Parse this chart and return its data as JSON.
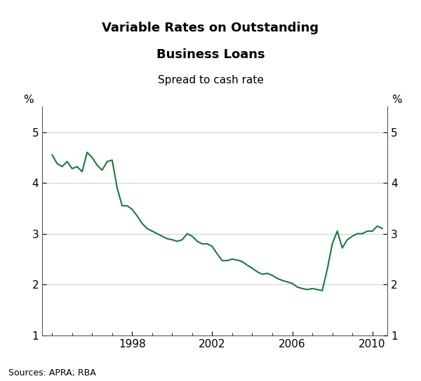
{
  "title_line1": "Variable Rates on Outstanding",
  "title_line2": "Business Loans",
  "subtitle": "Spread to cash rate",
  "ylabel_left": "%",
  "ylabel_right": "%",
  "source": "Sources: APRA; RBA",
  "line_color": "#1a7a3a",
  "line_width": 1.5,
  "background_color": "#ffffff",
  "ylim": [
    1,
    5.5
  ],
  "yticks": [
    1,
    2,
    3,
    4,
    5
  ],
  "xlim_start": 1993.5,
  "xlim_end": 2010.75,
  "xtick_years": [
    1998,
    2002,
    2006,
    2010
  ],
  "minor_xticks": [
    1994,
    1995,
    1996,
    1997,
    1998,
    1999,
    2000,
    2001,
    2002,
    2003,
    2004,
    2005,
    2006,
    2007,
    2008,
    2009,
    2010
  ],
  "data": [
    [
      1994.0,
      4.55
    ],
    [
      1994.25,
      4.38
    ],
    [
      1994.5,
      4.32
    ],
    [
      1994.75,
      4.42
    ],
    [
      1995.0,
      4.28
    ],
    [
      1995.25,
      4.32
    ],
    [
      1995.5,
      4.22
    ],
    [
      1995.75,
      4.6
    ],
    [
      1996.0,
      4.5
    ],
    [
      1996.25,
      4.35
    ],
    [
      1996.5,
      4.25
    ],
    [
      1996.75,
      4.42
    ],
    [
      1997.0,
      4.45
    ],
    [
      1997.25,
      3.9
    ],
    [
      1997.5,
      3.55
    ],
    [
      1997.75,
      3.55
    ],
    [
      1998.0,
      3.48
    ],
    [
      1998.25,
      3.35
    ],
    [
      1998.5,
      3.2
    ],
    [
      1998.75,
      3.1
    ],
    [
      1999.0,
      3.05
    ],
    [
      1999.25,
      3.0
    ],
    [
      1999.5,
      2.95
    ],
    [
      1999.75,
      2.9
    ],
    [
      2000.0,
      2.88
    ],
    [
      2000.25,
      2.85
    ],
    [
      2000.5,
      2.88
    ],
    [
      2000.75,
      3.0
    ],
    [
      2001.0,
      2.95
    ],
    [
      2001.25,
      2.85
    ],
    [
      2001.5,
      2.8
    ],
    [
      2001.75,
      2.8
    ],
    [
      2002.0,
      2.75
    ],
    [
      2002.25,
      2.6
    ],
    [
      2002.5,
      2.47
    ],
    [
      2002.75,
      2.47
    ],
    [
      2003.0,
      2.5
    ],
    [
      2003.25,
      2.48
    ],
    [
      2003.5,
      2.45
    ],
    [
      2003.75,
      2.38
    ],
    [
      2004.0,
      2.32
    ],
    [
      2004.25,
      2.25
    ],
    [
      2004.5,
      2.2
    ],
    [
      2004.75,
      2.22
    ],
    [
      2005.0,
      2.18
    ],
    [
      2005.25,
      2.12
    ],
    [
      2005.5,
      2.08
    ],
    [
      2005.75,
      2.05
    ],
    [
      2006.0,
      2.02
    ],
    [
      2006.25,
      1.95
    ],
    [
      2006.5,
      1.92
    ],
    [
      2006.75,
      1.9
    ],
    [
      2007.0,
      1.92
    ],
    [
      2007.25,
      1.9
    ],
    [
      2007.5,
      1.88
    ],
    [
      2007.75,
      2.3
    ],
    [
      2008.0,
      2.8
    ],
    [
      2008.25,
      3.05
    ],
    [
      2008.5,
      2.72
    ],
    [
      2008.75,
      2.88
    ],
    [
      2009.0,
      2.95
    ],
    [
      2009.25,
      3.0
    ],
    [
      2009.5,
      3.0
    ],
    [
      2009.75,
      3.05
    ],
    [
      2010.0,
      3.05
    ],
    [
      2010.25,
      3.15
    ],
    [
      2010.5,
      3.1
    ]
  ]
}
